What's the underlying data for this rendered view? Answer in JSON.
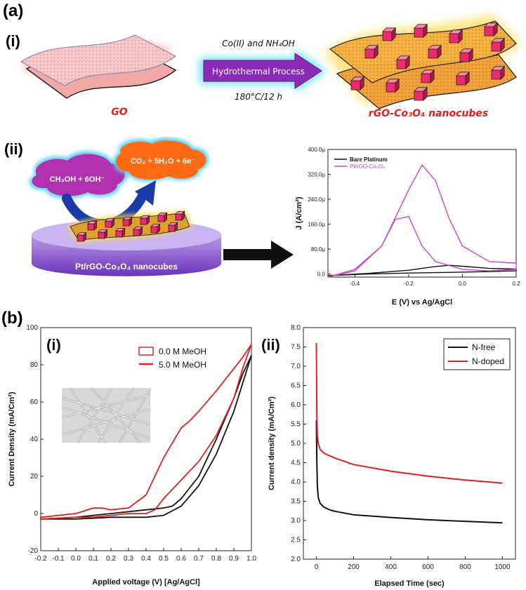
{
  "labels": {
    "a": "(a)",
    "a_i": "(i)",
    "a_ii": "(ii)",
    "b": "(b)",
    "b_i": "(i)",
    "b_ii": "(ii)"
  },
  "synthesis": {
    "reagent_line": "Co(II) and NH₄OH",
    "process": "Hydrothermal Process",
    "conditions": "180°C/12 h",
    "start_label": "GO",
    "product_label": "rGO-Co₃O₄ nanocubes"
  },
  "electrode": {
    "reactant": "CH₃OH + 6OH⁻",
    "product": "CO₂ + 5H₂O + 6e⁻",
    "disk_label": "Pt/rGO-Co₃O₄ nanocubes"
  },
  "colors": {
    "black": "#111111",
    "magenta": "#cc44cc",
    "red": "#e0201c",
    "arrow_purple": "#8a2bb8",
    "arrow_glow": "#56d8f0",
    "cloud_purple": "#b030b0",
    "cloud_orange": "#ff6a14",
    "disk_purple": "#7d3fc4"
  },
  "chart_data": [
    {
      "type": "line",
      "xlabel": "E (V) vs Ag/AgCl",
      "ylabel": "J (A/cm²)",
      "xlim": [
        -0.5,
        0.2
      ],
      "ylim": [
        -10,
        400
      ],
      "x_ticks": [
        "-0.4",
        "-0.2",
        "0.0",
        "0.2"
      ],
      "y_ticks": [
        "0.0",
        "80.0μ",
        "160.0μ",
        "240.0μ",
        "320.0μ",
        "400.0μ"
      ],
      "legend": [
        "Bare Platinum",
        "Pt/rGO-Co₃O₄"
      ],
      "series": [
        {
          "name": "Bare Platinum",
          "color": "#111111",
          "x": [
            -0.5,
            -0.35,
            -0.2,
            -0.1,
            -0.05,
            0.0,
            0.1,
            0.2,
            0.2,
            0.1,
            0.0,
            -0.2,
            -0.35,
            -0.5
          ],
          "y": [
            -5,
            2,
            12,
            24,
            28,
            25,
            18,
            16,
            10,
            8,
            6,
            3,
            0,
            -5
          ]
        },
        {
          "name": "Pt/rGO-Co₃O₄",
          "color": "#cc44cc",
          "x": [
            -0.5,
            -0.4,
            -0.3,
            -0.2,
            -0.15,
            -0.1,
            -0.05,
            0.0,
            0.1,
            0.2,
            0.2,
            0.1,
            0.0,
            -0.1,
            -0.15,
            -0.2,
            -0.25,
            -0.3,
            -0.4,
            -0.5
          ],
          "y": [
            -10,
            10,
            90,
            270,
            350,
            300,
            180,
            90,
            40,
            35,
            15,
            10,
            15,
            40,
            90,
            185,
            175,
            90,
            15,
            -10
          ]
        }
      ]
    },
    {
      "type": "line",
      "xlabel": "Applied voltage (V) [Ag/AgCl]",
      "ylabel": "Current Density (mA/Cm²)",
      "xlim": [
        -0.2,
        1.0
      ],
      "ylim": [
        -20,
        100
      ],
      "x_ticks": [
        "-0.2",
        "-0.1",
        "0.0",
        "0.1",
        "0.2",
        "0.3",
        "0.4",
        "0.5",
        "0.6",
        "0.7",
        "0.8",
        "0.9",
        "1.0"
      ],
      "y_ticks": [
        "-20",
        "0",
        "20",
        "40",
        "60",
        "80",
        "100"
      ],
      "legend": [
        "0.0 M MeOH",
        "5.0 M MeOH"
      ],
      "series": [
        {
          "name": "0.0 M MeOH",
          "color": "#111111",
          "x": [
            -0.2,
            0.0,
            0.2,
            0.4,
            0.5,
            0.55,
            0.6,
            0.7,
            0.8,
            0.9,
            0.95,
            1.0,
            0.95,
            0.9,
            0.8,
            0.7,
            0.6,
            0.5,
            0.4,
            0.2,
            0.0,
            -0.2
          ],
          "y": [
            -3,
            -2,
            0,
            2,
            3,
            4,
            8,
            20,
            40,
            62,
            75,
            85,
            70,
            55,
            32,
            15,
            4,
            -1,
            -2,
            -2,
            -3,
            -3
          ]
        },
        {
          "name": "5.0 M MeOH",
          "color": "#e0201c",
          "x": [
            -0.2,
            0.0,
            0.1,
            0.15,
            0.2,
            0.3,
            0.4,
            0.5,
            0.6,
            0.65,
            0.7,
            0.8,
            0.9,
            0.95,
            1.0,
            0.95,
            0.9,
            0.8,
            0.7,
            0.6,
            0.5,
            0.45,
            0.4,
            0.3,
            0.2,
            0.1,
            0.0,
            -0.2
          ],
          "y": [
            -2,
            0,
            3,
            3,
            2,
            3,
            10,
            30,
            46,
            50,
            55,
            66,
            78,
            84,
            91,
            78,
            62,
            42,
            28,
            18,
            8,
            2,
            0,
            0,
            -1,
            -2,
            -2,
            -3
          ]
        }
      ]
    },
    {
      "type": "line",
      "xlabel": "Elapsed Time (sec)",
      "ylabel": "Current density (mA/Cm²)",
      "xlim": [
        -70,
        1070
      ],
      "ylim": [
        2.0,
        8.0
      ],
      "x_ticks": [
        "0",
        "200",
        "400",
        "600",
        "800",
        "1000"
      ],
      "y_ticks": [
        "2.0",
        "2.5",
        "3.0",
        "3.5",
        "4.0",
        "4.5",
        "5.0",
        "5.5",
        "6.0",
        "6.5",
        "7.0",
        "7.5",
        "8.0"
      ],
      "legend": [
        "N-free",
        "N-doped"
      ],
      "series": [
        {
          "name": "N-free",
          "color": "#111111",
          "x": [
            0,
            2,
            5,
            10,
            20,
            40,
            70,
            100,
            200,
            400,
            600,
            800,
            1000
          ],
          "y": [
            5.6,
            4.6,
            3.9,
            3.6,
            3.45,
            3.35,
            3.28,
            3.24,
            3.15,
            3.08,
            3.02,
            2.98,
            2.94
          ]
        },
        {
          "name": "N-doped",
          "color": "#e0201c",
          "x": [
            0,
            2,
            5,
            10,
            20,
            40,
            70,
            100,
            200,
            400,
            600,
            800,
            1000
          ],
          "y": [
            7.6,
            5.8,
            5.2,
            5.0,
            4.85,
            4.75,
            4.68,
            4.62,
            4.45,
            4.28,
            4.15,
            4.05,
            3.97
          ]
        }
      ]
    }
  ]
}
